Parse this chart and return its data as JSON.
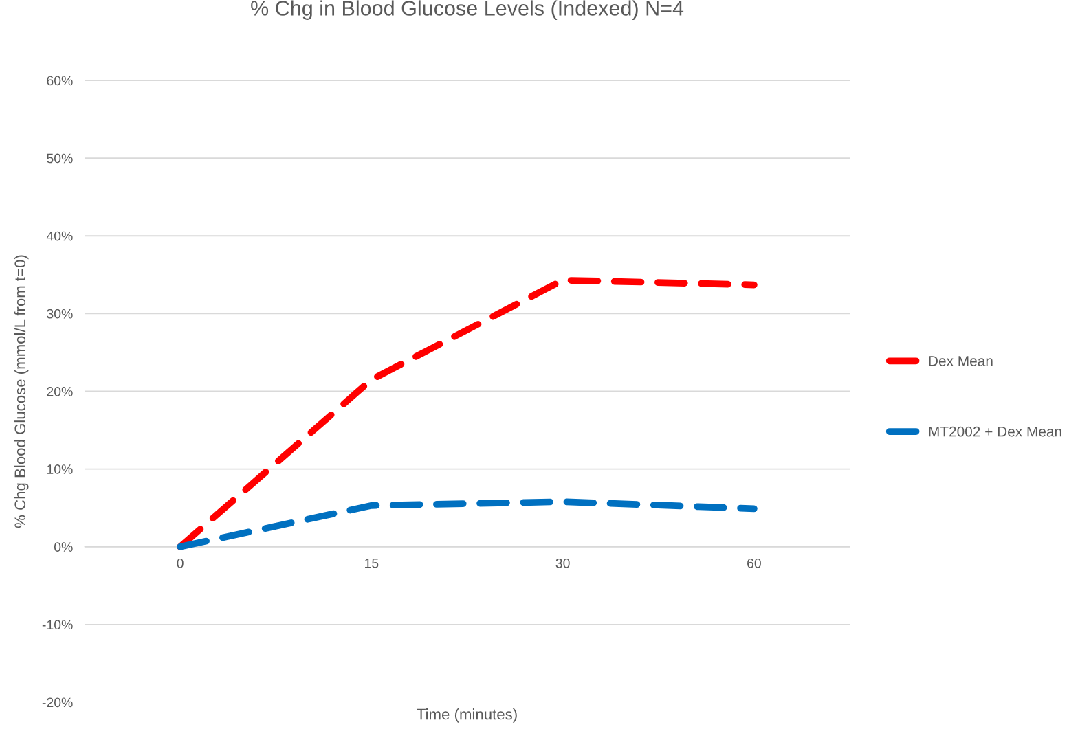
{
  "chart_data": {
    "type": "line",
    "title": "% Chg in Blood Glucose Levels (Indexed) N=4",
    "xlabel": "Time (minutes)",
    "ylabel": "% Chg Blood Glucose (mmol/L from t=0)",
    "categories": [
      "0",
      "15",
      "30",
      "60"
    ],
    "series": [
      {
        "name": "Dex Mean",
        "color": "#ff0000",
        "values": [
          0,
          21.5,
          34.3,
          33.7
        ]
      },
      {
        "name": "MT2002 + Dex Mean",
        "color": "#0070c0",
        "values": [
          0,
          5.3,
          5.8,
          4.9
        ]
      }
    ],
    "ylim": [
      -20,
      60
    ],
    "yticks": [
      {
        "value": -20,
        "label": "-20%"
      },
      {
        "value": -10,
        "label": "-10%"
      },
      {
        "value": 0,
        "label": "0%"
      },
      {
        "value": 10,
        "label": "10%"
      },
      {
        "value": 20,
        "label": "20%"
      },
      {
        "value": 30,
        "label": "30%"
      },
      {
        "value": 40,
        "label": "40%"
      },
      {
        "value": 50,
        "label": "50%"
      },
      {
        "value": 60,
        "label": "60%"
      }
    ],
    "grid": "y",
    "legend": "right",
    "line_style": "dashed",
    "marker": "none"
  }
}
